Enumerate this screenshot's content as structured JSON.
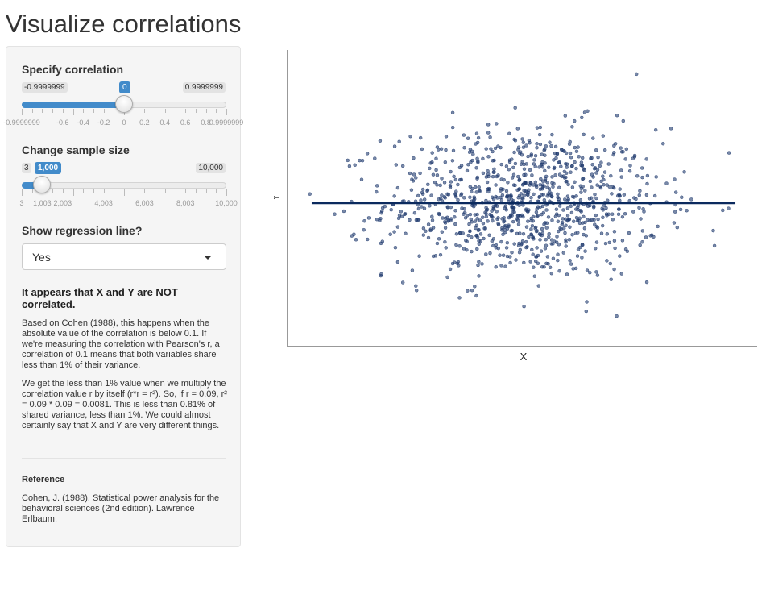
{
  "page_title": "Visualize correlations",
  "correlation": {
    "label": "Specify correlation",
    "min_label": "-0.9999999",
    "max_label": "0.9999999",
    "value_label": "0",
    "value": 0,
    "min": -0.9999999,
    "max": 0.9999999,
    "tick_labels": [
      "-0.9999999",
      "-0.6",
      "-0.4",
      "-0.2",
      "0",
      "0.2",
      "0.4",
      "0.6",
      "0.8",
      "0.9999999"
    ],
    "tick_values": [
      -0.9999999,
      -0.6,
      -0.4,
      -0.2,
      0,
      0.2,
      0.4,
      0.6,
      0.8,
      0.9999999
    ]
  },
  "sample_size": {
    "label": "Change sample size",
    "min_label": "3",
    "max_label": "10,000",
    "value_label": "1,000",
    "value": 1000,
    "min": 3,
    "max": 10000,
    "tick_labels": [
      "3",
      "1,003",
      "2,003",
      "4,003",
      "6,003",
      "8,003",
      "10,000"
    ],
    "tick_values": [
      3,
      1003,
      2003,
      4003,
      6003,
      8003,
      10000
    ]
  },
  "regression": {
    "label": "Show regression line?",
    "selected": "Yes"
  },
  "result": {
    "heading": "It appears that X and Y are NOT correlated.",
    "paragraph1": "Based on Cohen (1988), this happens when the absolute value of the correlation is below 0.1. If we're measuring the correlation with Pearson's r, a correlation of 0.1 means that both variables share less than 1% of their variance.",
    "paragraph2": "We get the less than 1% value when we multiply the correlation value r by itself (r*r = r²). So, if r = 0.09, r² = 0.09 * 0.09 = 0.0081. This is less than 0.81% of shared variance, less than 1%. We could almost certainly say that X and Y are very different things."
  },
  "reference": {
    "heading": "Reference",
    "text": "Cohen, J. (1988). Statistical power analysis for the behavioral sciences (2nd edition). Lawrence Erlbaum."
  },
  "chart_data": {
    "type": "scatter",
    "xlabel": "X",
    "ylabel": "Y",
    "n": 1000,
    "correlation": 0,
    "xlim": [
      -3.3,
      3.3
    ],
    "ylim": [
      -3.6,
      3.9
    ],
    "point_color": "#1f3a6e",
    "line_color": "#0b2a5e",
    "regression_line": {
      "visible": true,
      "slope": 0,
      "intercept": 0
    },
    "axes": {
      "ticks": false,
      "grid": false
    }
  }
}
